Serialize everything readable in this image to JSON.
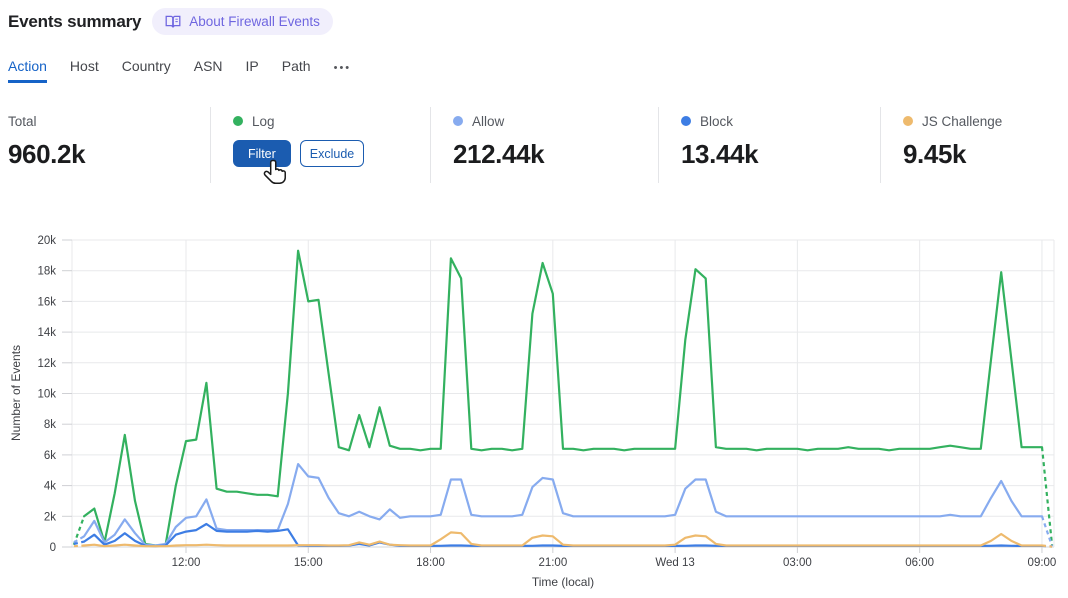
{
  "header": {
    "title": "Events summary",
    "about_button": "About Firewall Events"
  },
  "tabs": {
    "items": [
      "Action",
      "Host",
      "Country",
      "ASN",
      "IP",
      "Path"
    ],
    "active": "Action",
    "more": "•••"
  },
  "stats": {
    "total": {
      "label": "Total",
      "value": "960.2k"
    },
    "log": {
      "label": "Log",
      "color": "#33b15f",
      "filter_label": "Filter",
      "exclude_label": "Exclude"
    },
    "allow": {
      "label": "Allow",
      "value": "212.44k",
      "color": "#87abef"
    },
    "block": {
      "label": "Block",
      "value": "13.44k",
      "color": "#3d7de4"
    },
    "js_challenge": {
      "label": "JS Challenge",
      "value": "9.45k",
      "color": "#eeba6d"
    }
  },
  "accent": {
    "blue": "#1663c7",
    "button_blue": "#1b5cb0",
    "badge_fg": "#6f66e0",
    "badge_bg": "#f1effc"
  },
  "chart_data": {
    "type": "line",
    "xlabel": "Time (local)",
    "ylabel": "Number of Events",
    "ylim": [
      0,
      20000
    ],
    "grid": true,
    "legend_position": "top-stats-row",
    "y_ticklabels": [
      "0",
      "2k",
      "4k",
      "6k",
      "8k",
      "10k",
      "12k",
      "14k",
      "16k",
      "18k",
      "20k"
    ],
    "x_ticklabels": [
      "12:00",
      "15:00",
      "18:00",
      "21:00",
      "Wed 13",
      "03:00",
      "06:00",
      "09:00"
    ],
    "x_tick_indices": [
      11,
      23,
      35,
      47,
      59,
      71,
      83,
      95
    ],
    "points_interval_minutes": 15,
    "incomplete_edges_dashed": true,
    "series": [
      {
        "name": "Log",
        "key": "log",
        "color": "#33b15f",
        "values_k": [
          0.15,
          2,
          2.5,
          0.3,
          3.5,
          7.3,
          3,
          0.2,
          0.1,
          0.15,
          4,
          6.9,
          7,
          10.7,
          3.8,
          3.6,
          3.6,
          3.5,
          3.4,
          3.4,
          3.3,
          10,
          19.3,
          16,
          16.1,
          11.3,
          6.5,
          6.3,
          8.6,
          6.5,
          9.1,
          6.6,
          6.4,
          6.4,
          6.3,
          6.4,
          6.4,
          18.8,
          17.5,
          6.4,
          6.3,
          6.4,
          6.4,
          6.3,
          6.4,
          15.2,
          18.5,
          16.5,
          6.4,
          6.4,
          6.3,
          6.4,
          6.4,
          6.4,
          6.3,
          6.4,
          6.4,
          6.4,
          6.4,
          6.4,
          13.5,
          18.1,
          17.5,
          6.5,
          6.4,
          6.4,
          6.4,
          6.3,
          6.4,
          6.4,
          6.4,
          6.4,
          6.3,
          6.4,
          6.4,
          6.4,
          6.5,
          6.4,
          6.4,
          6.4,
          6.3,
          6.4,
          6.4,
          6.4,
          6.4,
          6.5,
          6.6,
          6.5,
          6.4,
          6.4,
          12.2,
          17.9,
          12.2,
          6.5,
          6.5,
          6.5,
          0.1
        ]
      },
      {
        "name": "Allow",
        "key": "allow",
        "color": "#87abef",
        "values_k": [
          0.3,
          0.7,
          1.7,
          0.3,
          0.8,
          1.8,
          0.9,
          0.15,
          0.1,
          0.2,
          1.3,
          1.9,
          2,
          3.1,
          1.2,
          1.1,
          1.1,
          1.1,
          1.1,
          1.1,
          1.1,
          2.8,
          5.4,
          4.6,
          4.5,
          3.2,
          2.2,
          2,
          2.3,
          2,
          1.8,
          2.45,
          1.9,
          2,
          2,
          2,
          2.1,
          4.4,
          4.4,
          2.1,
          2,
          2,
          2,
          2,
          2.1,
          3.9,
          4.5,
          4.4,
          2.2,
          2,
          2,
          2,
          2,
          2,
          2,
          2,
          2,
          2,
          2,
          2.1,
          3.8,
          4.4,
          4.4,
          2.3,
          2,
          2,
          2,
          2,
          2,
          2,
          2,
          2,
          2,
          2,
          2,
          2,
          2,
          2,
          2,
          2,
          2,
          2,
          2,
          2,
          2,
          2,
          2.1,
          2,
          2,
          2,
          3.2,
          4.3,
          3,
          2,
          2,
          2,
          0.05
        ]
      },
      {
        "name": "Block",
        "key": "block",
        "color": "#3d7de4",
        "values_k": [
          0.2,
          0.35,
          0.8,
          0.15,
          0.4,
          0.9,
          0.4,
          0.08,
          0.05,
          0.1,
          0.8,
          1,
          1.1,
          1.5,
          1.05,
          1,
          1,
          1,
          1.05,
          1,
          1.05,
          1.15,
          0.1,
          0.08,
          0.08,
          0.07,
          0.07,
          0.1,
          0.2,
          0.1,
          0.3,
          0.15,
          0.08,
          0.07,
          0.07,
          0.07,
          0.08,
          0.1,
          0.1,
          0.08,
          0.07,
          0.07,
          0.07,
          0.07,
          0.07,
          0.08,
          0.1,
          0.1,
          0.07,
          0.07,
          0.07,
          0.07,
          0.07,
          0.07,
          0.07,
          0.07,
          0.07,
          0.07,
          0.07,
          0.07,
          0.08,
          0.1,
          0.1,
          0.08,
          0.07,
          0.07,
          0.07,
          0.07,
          0.07,
          0.07,
          0.07,
          0.07,
          0.07,
          0.07,
          0.07,
          0.07,
          0.07,
          0.07,
          0.07,
          0.07,
          0.07,
          0.07,
          0.07,
          0.07,
          0.07,
          0.07,
          0.07,
          0.07,
          0.07,
          0.07,
          0.08,
          0.1,
          0.08,
          0.07,
          0.07,
          0.07,
          0.03
        ]
      },
      {
        "name": "JS Challenge",
        "key": "js-challenge",
        "color": "#eeba6d",
        "values_k": [
          0.05,
          0.1,
          0.15,
          0.05,
          0.1,
          0.15,
          0.1,
          0.05,
          0.05,
          0.05,
          0.1,
          0.12,
          0.12,
          0.15,
          0.12,
          0.1,
          0.1,
          0.1,
          0.1,
          0.1,
          0.1,
          0.1,
          0.12,
          0.12,
          0.12,
          0.1,
          0.1,
          0.12,
          0.3,
          0.15,
          0.35,
          0.15,
          0.12,
          0.1,
          0.1,
          0.1,
          0.5,
          0.95,
          0.9,
          0.2,
          0.1,
          0.1,
          0.1,
          0.1,
          0.1,
          0.6,
          0.75,
          0.7,
          0.15,
          0.1,
          0.1,
          0.1,
          0.1,
          0.1,
          0.1,
          0.1,
          0.1,
          0.1,
          0.1,
          0.15,
          0.6,
          0.75,
          0.7,
          0.2,
          0.1,
          0.1,
          0.1,
          0.1,
          0.1,
          0.1,
          0.1,
          0.1,
          0.1,
          0.1,
          0.1,
          0.1,
          0.1,
          0.1,
          0.1,
          0.1,
          0.1,
          0.1,
          0.1,
          0.1,
          0.1,
          0.1,
          0.1,
          0.1,
          0.1,
          0.1,
          0.4,
          0.85,
          0.4,
          0.1,
          0.1,
          0.1,
          0.02
        ]
      }
    ]
  }
}
